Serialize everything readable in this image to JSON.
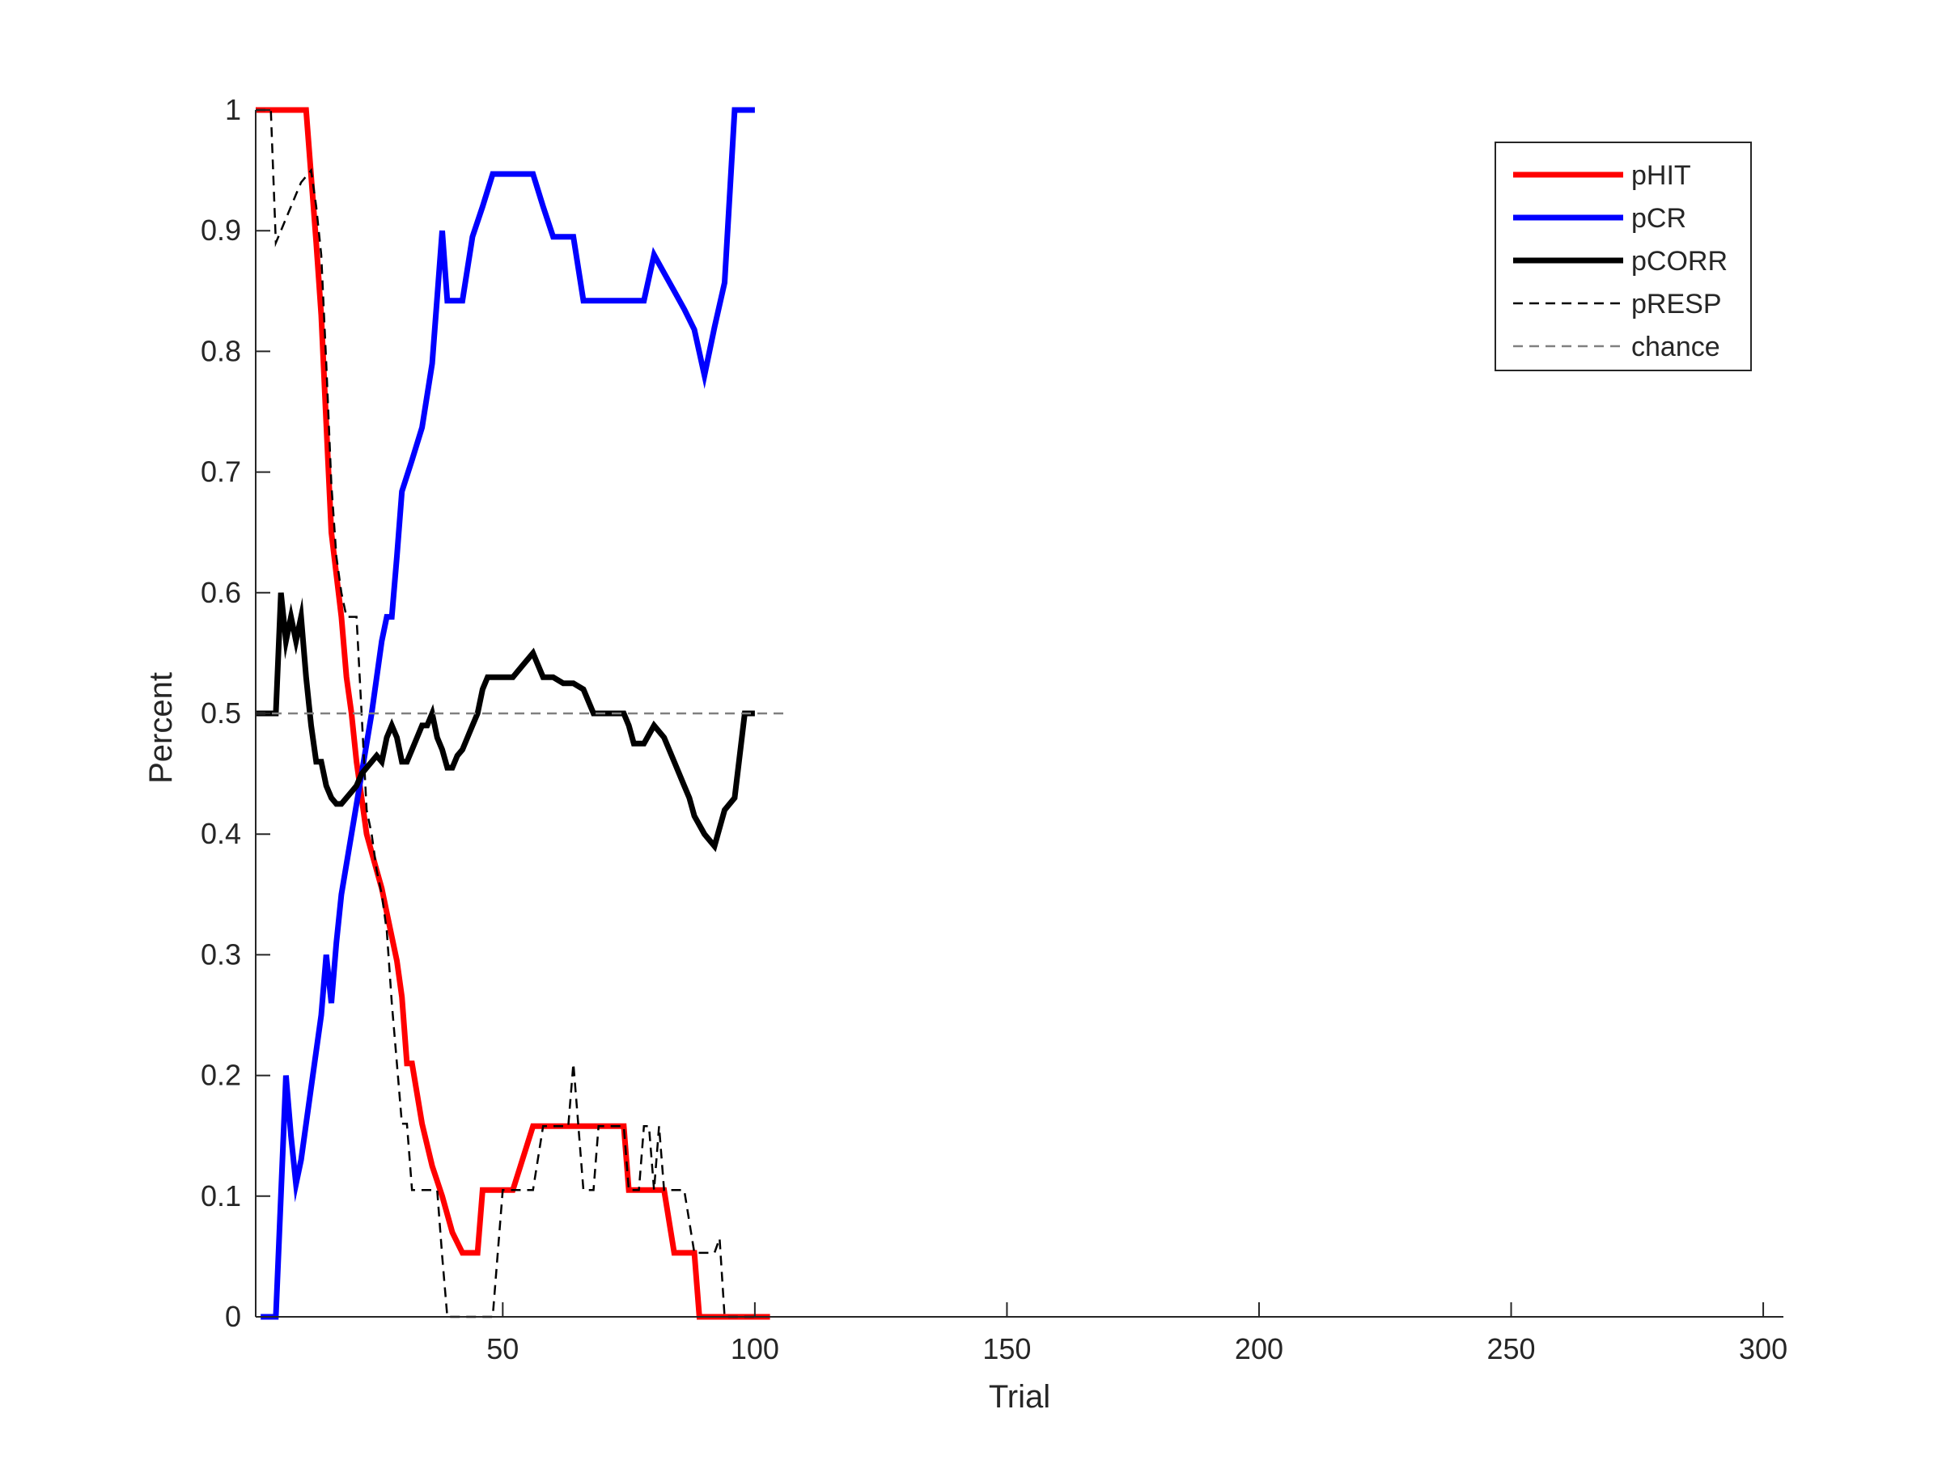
{
  "chart_data": {
    "type": "line",
    "title": "",
    "xlabel": "Trial",
    "ylabel": "Percent",
    "xlim": [
      1,
      304
    ],
    "ylim": [
      0,
      1
    ],
    "xticks": [
      50,
      100,
      150,
      200,
      250,
      300
    ],
    "xtick_labels": [
      "50",
      "100",
      "150",
      "200",
      "250",
      "300"
    ],
    "yticks": [
      0,
      0.1,
      0.2,
      0.3,
      0.4,
      0.5,
      0.6,
      0.7,
      0.8,
      0.9,
      1
    ],
    "ytick_labels": [
      "0",
      "0.1",
      "0.2",
      "0.3",
      "0.4",
      "0.5",
      "0.6",
      "0.7",
      "0.8",
      "0.9",
      "1"
    ],
    "grid": false,
    "legend_position": "top-right",
    "series": [
      {
        "name": "pHIT",
        "color": "#ff0000",
        "style": "solid",
        "width": "thick",
        "x": [
          1,
          4,
          8,
          11,
          13,
          14,
          15,
          16,
          17,
          18,
          19,
          20,
          21,
          22,
          23,
          24,
          25,
          26,
          27,
          28,
          29,
          30,
          31,
          32,
          33,
          34,
          36,
          38,
          40,
          42,
          44,
          45,
          46,
          48,
          52,
          56,
          60,
          64,
          68,
          72,
          74,
          75,
          78,
          82,
          84,
          86,
          88,
          89,
          92,
          96,
          100,
          103
        ],
        "y": [
          1,
          1,
          1,
          1,
          0.89,
          0.83,
          0.74,
          0.65,
          0.615,
          0.58,
          0.53,
          0.5,
          0.46,
          0.43,
          0.4,
          0.385,
          0.37,
          0.355,
          0.335,
          0.315,
          0.295,
          0.265,
          0.21,
          0.21,
          0.185,
          0.16,
          0.125,
          0.1,
          0.07,
          0.053,
          0.053,
          0.053,
          0.105,
          0.105,
          0.105,
          0.158,
          0.158,
          0.158,
          0.158,
          0.158,
          0.158,
          0.105,
          0.105,
          0.105,
          0.053,
          0.053,
          0.053,
          0,
          0,
          0,
          0,
          0
        ]
      },
      {
        "name": "pCR",
        "color": "#0000ff",
        "style": "solid",
        "width": "thick",
        "x": [
          2,
          5,
          7,
          8,
          9,
          10,
          12,
          14,
          15,
          16,
          17,
          18,
          20,
          22,
          24,
          26,
          27,
          28,
          29,
          30,
          32,
          34,
          36,
          37,
          38,
          39,
          40,
          42,
          44,
          46,
          48,
          50,
          52,
          56,
          58,
          60,
          62,
          64,
          66,
          68,
          70,
          72,
          74,
          76,
          78,
          80,
          82,
          84,
          86,
          88,
          90,
          92,
          94,
          96,
          98,
          100
        ],
        "y": [
          0,
          0,
          0.2,
          0.15,
          0.11,
          0.13,
          0.19,
          0.25,
          0.3,
          0.26,
          0.31,
          0.35,
          0.4,
          0.45,
          0.5,
          0.56,
          0.58,
          0.58,
          0.63,
          0.684,
          0.71,
          0.737,
          0.79,
          0.845,
          0.9,
          0.842,
          0.842,
          0.842,
          0.895,
          0.92,
          0.947,
          0.947,
          0.947,
          0.947,
          0.92,
          0.895,
          0.895,
          0.895,
          0.842,
          0.842,
          0.842,
          0.842,
          0.842,
          0.842,
          0.842,
          0.88,
          0.865,
          0.85,
          0.835,
          0.818,
          0.78,
          0.82,
          0.857,
          1,
          1,
          1
        ]
      },
      {
        "name": "pCORR",
        "color": "#000000",
        "style": "solid",
        "width": "thick",
        "x": [
          1,
          3,
          5,
          6,
          7,
          8,
          9,
          10,
          11,
          12,
          13,
          14,
          15,
          16,
          17,
          18,
          19,
          20,
          21,
          22,
          23,
          24,
          25,
          26,
          27,
          28,
          29,
          30,
          31,
          32,
          33,
          34,
          35,
          36,
          37,
          38,
          39,
          40,
          41,
          42,
          43,
          44,
          45,
          46,
          47,
          48,
          49,
          50,
          52,
          54,
          56,
          58,
          60,
          62,
          64,
          66,
          68,
          70,
          72,
          74,
          75,
          76,
          77,
          78,
          80,
          82,
          84,
          86,
          87,
          88,
          90,
          92,
          94,
          96,
          98,
          100
        ],
        "y": [
          0.5,
          0.5,
          0.5,
          0.6,
          0.56,
          0.58,
          0.56,
          0.58,
          0.53,
          0.49,
          0.46,
          0.46,
          0.44,
          0.43,
          0.425,
          0.425,
          0.43,
          0.435,
          0.44,
          0.45,
          0.455,
          0.46,
          0.465,
          0.46,
          0.48,
          0.49,
          0.48,
          0.46,
          0.46,
          0.47,
          0.48,
          0.49,
          0.49,
          0.5,
          0.48,
          0.47,
          0.455,
          0.455,
          0.465,
          0.47,
          0.48,
          0.49,
          0.5,
          0.52,
          0.53,
          0.53,
          0.53,
          0.53,
          0.53,
          0.54,
          0.55,
          0.53,
          0.53,
          0.525,
          0.525,
          0.52,
          0.5,
          0.5,
          0.5,
          0.5,
          0.49,
          0.475,
          0.475,
          0.475,
          0.49,
          0.48,
          0.46,
          0.44,
          0.43,
          0.415,
          0.4,
          0.39,
          0.42,
          0.43,
          0.5,
          0.5
        ]
      },
      {
        "name": "pRESP",
        "color": "#000000",
        "style": "dashed",
        "width": "thin",
        "x": [
          1,
          4,
          5,
          6,
          8,
          9,
          10,
          11,
          12,
          13,
          14,
          15,
          16,
          17,
          18,
          19,
          20,
          21,
          22,
          23,
          24,
          25,
          26,
          27,
          28,
          29,
          30,
          31,
          32,
          34,
          36,
          37,
          38,
          39,
          40,
          42,
          44,
          46,
          48,
          50,
          52,
          54,
          56,
          58,
          60,
          62,
          63,
          64,
          65,
          66,
          68,
          69,
          70,
          72,
          74,
          75,
          76,
          77,
          78,
          79,
          80,
          81,
          82,
          84,
          86,
          88,
          90,
          92,
          93,
          94,
          96,
          98,
          100
        ],
        "y": [
          1,
          1,
          0.89,
          0.9,
          0.92,
          0.93,
          0.94,
          0.945,
          0.95,
          0.92,
          0.88,
          0.79,
          0.69,
          0.63,
          0.6,
          0.58,
          0.58,
          0.58,
          0.5,
          0.42,
          0.4,
          0.37,
          0.35,
          0.32,
          0.26,
          0.21,
          0.16,
          0.16,
          0.105,
          0.105,
          0.105,
          0.105,
          0.05,
          0.0,
          0.0,
          0.0,
          0.0,
          0.0,
          0.0,
          0.105,
          0.105,
          0.105,
          0.105,
          0.158,
          0.158,
          0.158,
          0.158,
          0.21,
          0.158,
          0.105,
          0.105,
          0.158,
          0.158,
          0.158,
          0.158,
          0.105,
          0.105,
          0.105,
          0.158,
          0.158,
          0.105,
          0.158,
          0.105,
          0.105,
          0.105,
          0.053,
          0.053,
          0.053,
          0.065,
          0.0,
          0.0,
          0.0,
          0.0
        ]
      },
      {
        "name": "chance",
        "color": "#808080",
        "style": "dashed",
        "width": "thin",
        "x": [
          1,
          106
        ],
        "y": [
          0.5,
          0.5
        ]
      }
    ]
  }
}
